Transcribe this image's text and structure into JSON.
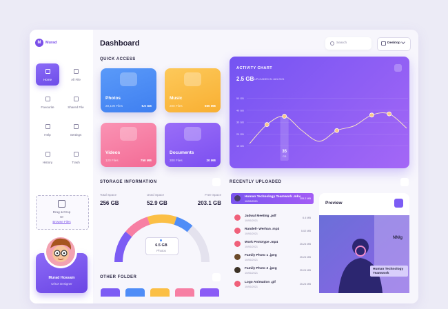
{
  "sidebar": {
    "user_initial": "M",
    "user_name": "Murad",
    "nav": [
      "Home",
      "All File",
      "Favourite",
      "Shared File",
      "Help",
      "Settings",
      "History",
      "Trash"
    ],
    "upload": {
      "line1": "Drag & Drop",
      "line2": "Or",
      "link": "Browse Files"
    },
    "profile": {
      "name": "Murad Hossain",
      "role": "UI/UX Designer"
    }
  },
  "header": {
    "title": "Dashboard",
    "search": "Search",
    "device": "Desktop"
  },
  "quick_access": {
    "title": "QUICK ACCESS",
    "cards": [
      {
        "name": "Photos",
        "files": "20,100 Files",
        "size": "6.5 GB"
      },
      {
        "name": "Music",
        "files": "200 Files",
        "size": "560 MB"
      },
      {
        "name": "Videos",
        "files": "120 Files",
        "size": "750 MB"
      },
      {
        "name": "Documents",
        "files": "200 Files",
        "size": "20 MB"
      }
    ]
  },
  "activity": {
    "title": "ACTIVITY CHART",
    "total": "2.5 GB",
    "subtitle": "UPLOADED IN JAN 2021",
    "chart": {
      "type": "line",
      "color": "#fde9c4",
      "ylim": [
        0,
        55
      ],
      "yticks": [
        {
          "value": 10,
          "label": "10 GB"
        },
        {
          "value": 20,
          "label": "20 GB"
        },
        {
          "value": 30,
          "label": "30 GB"
        },
        {
          "value": 40,
          "label": "40 GB"
        },
        {
          "value": 50,
          "label": "50 GB"
        }
      ],
      "values": [
        12,
        28,
        35,
        23,
        14,
        23,
        27,
        36,
        37,
        25
      ],
      "grid": true
    },
    "highlight": {
      "value": "35",
      "unit": "GB"
    }
  },
  "storage": {
    "title": "STORAGE INFORMATION",
    "total_label": "Total Space",
    "total": "256 GB",
    "used_label": "Used Space",
    "used": "52.9 GB",
    "free_label": "Free Space",
    "free": "203.1 GB",
    "gauge": {
      "value": "6.5 GB",
      "label": "Photos"
    }
  },
  "other_folder": {
    "title": "OTHER FOLDER"
  },
  "recent": {
    "title": "RECENTLY UPLOADED",
    "files": [
      {
        "name": "Human Technology Teamwork .mkv",
        "date": "10/06/2021",
        "size": "205.2 MB"
      },
      {
        "name": "Jadwal Meeting .pdf",
        "date": "10/06/2021",
        "size": "6.4 MB"
      },
      {
        "name": "Randell- Werhan .mp3",
        "date": "10/06/2021",
        "size": "5.02 MB"
      },
      {
        "name": "Work Prototype .mp4",
        "date": "10/06/2021",
        "size": "25.24 MB"
      },
      {
        "name": "Family Photo 1 .jpeg",
        "date": "10/06/2021",
        "size": "25.24 MB"
      },
      {
        "name": "Family Photo 2 .jpeg",
        "date": "10/06/2021",
        "size": "25.24 MB"
      },
      {
        "name": "Logo Animation .gif",
        "date": "10/06/2021",
        "size": "25.24 MB"
      }
    ]
  },
  "preview": {
    "title": "Preview",
    "logo": "NN/g",
    "caption": "Human Technology Teamwork"
  }
}
